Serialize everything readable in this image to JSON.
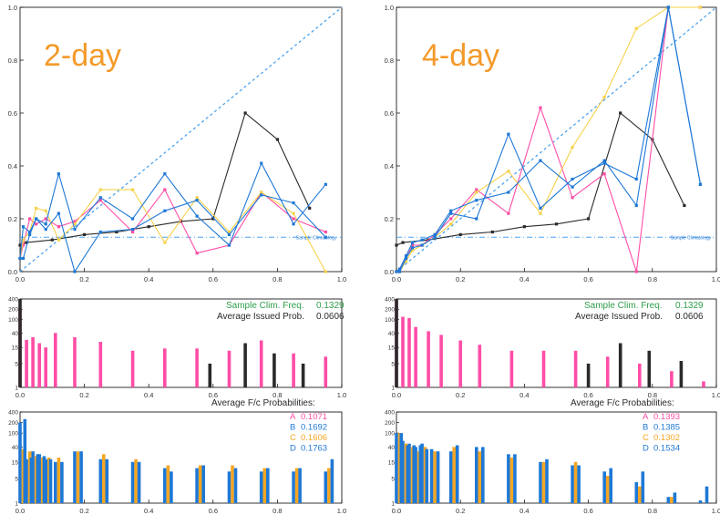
{
  "colors": {
    "black": "#2a2a2a",
    "pink": "#ff4da6",
    "blue": "#1e78d6",
    "orange": "#f5a623",
    "yellow": "#f6d24a",
    "diag": "#4aa3f0",
    "green": "#2e9e4a",
    "lead_label": "#f39a2a"
  },
  "panels": [
    {
      "lead_label": "2-day",
      "stats": {
        "clim_label": "Sample Clim. Freq.",
        "clim_value": "0.1329",
        "avg_label": "Average Issued Prob.",
        "avg_value": "0.0606"
      },
      "avg_title": "Average F/c Probabilities:",
      "avg_items": [
        {
          "letter": "A",
          "value": "0.1071",
          "color": "#ff4da6"
        },
        {
          "letter": "B",
          "value": "0.1692",
          "color": "#1e78d6"
        },
        {
          "letter": "C",
          "value": "0.1606",
          "color": "#f5a623"
        },
        {
          "letter": "D",
          "value": "0.1763",
          "color": "#1e78d6"
        }
      ],
      "sample_clim_label": "Sample Climatology"
    },
    {
      "lead_label": "4-day",
      "stats": {
        "clim_label": "Sample Clim. Freq.",
        "clim_value": "0.1329",
        "avg_label": "Average Issued Prob.",
        "avg_value": "0.0606"
      },
      "avg_title": "Average F/c Probabilities:",
      "avg_items": [
        {
          "letter": "A",
          "value": "0.1393",
          "color": "#ff4da6"
        },
        {
          "letter": "B",
          "value": "0.1385",
          "color": "#1e78d6"
        },
        {
          "letter": "C",
          "value": "0.1302",
          "color": "#f5a623"
        },
        {
          "letter": "D",
          "value": "0.1534",
          "color": "#1e78d6"
        }
      ],
      "sample_clim_label": "Sample Climatology"
    }
  ],
  "chart_data": [
    {
      "type": "line",
      "panel": "2-day reliability",
      "xlim": [
        0,
        1
      ],
      "ylim": [
        0,
        1
      ],
      "xticks": [
        "0.0",
        "0.2",
        "0.4",
        "0.6",
        "0.8",
        "1.0"
      ],
      "yticks": [
        "0.0",
        "0.2",
        "0.4",
        "0.6",
        "0.8",
        "1.0"
      ],
      "sample_climatology": 0.13,
      "series": [
        {
          "color": "black",
          "x": [
            0.0,
            0.02,
            0.1,
            0.2,
            0.3,
            0.4,
            0.5,
            0.6,
            0.7,
            0.8,
            0.9
          ],
          "y": [
            0.1,
            0.11,
            0.12,
            0.14,
            0.15,
            0.17,
            0.19,
            0.2,
            0.6,
            0.5,
            0.24
          ]
        },
        {
          "color": "pink",
          "x": [
            0.0,
            0.01,
            0.03,
            0.05,
            0.08,
            0.12,
            0.17,
            0.25,
            0.35,
            0.45,
            0.55,
            0.65,
            0.75,
            0.85,
            0.95
          ],
          "y": [
            0.05,
            0.1,
            0.2,
            0.18,
            0.2,
            0.17,
            0.19,
            0.27,
            0.15,
            0.31,
            0.07,
            0.1,
            0.3,
            0.2,
            0.15
          ]
        },
        {
          "color": "yellow",
          "x": [
            0.0,
            0.01,
            0.03,
            0.05,
            0.08,
            0.12,
            0.17,
            0.25,
            0.35,
            0.45,
            0.55,
            0.65,
            0.75,
            0.85,
            0.95
          ],
          "y": [
            0.05,
            0.12,
            0.15,
            0.24,
            0.23,
            0.12,
            0.18,
            0.31,
            0.31,
            0.11,
            0.28,
            0.15,
            0.3,
            0.22,
            0.0
          ]
        },
        {
          "color": "blue",
          "x": [
            0.0,
            0.01,
            0.03,
            0.05,
            0.08,
            0.12,
            0.17,
            0.25,
            0.35,
            0.45,
            0.55,
            0.65,
            0.75,
            0.85,
            0.95
          ],
          "y": [
            0.05,
            0.17,
            0.15,
            0.2,
            0.18,
            0.37,
            0.16,
            0.28,
            0.2,
            0.37,
            0.21,
            0.1,
            0.41,
            0.18,
            0.33
          ]
        },
        {
          "color": "blue",
          "x": [
            0.0,
            0.01,
            0.03,
            0.05,
            0.08,
            0.12,
            0.17,
            0.25,
            0.35,
            0.45,
            0.55,
            0.65,
            0.75,
            0.85,
            0.95
          ],
          "y": [
            0.05,
            0.05,
            0.14,
            0.2,
            0.16,
            0.22,
            0.0,
            0.15,
            0.16,
            0.23,
            0.27,
            0.14,
            0.29,
            0.26,
            0.13
          ]
        }
      ]
    },
    {
      "type": "line",
      "panel": "4-day reliability",
      "xlim": [
        0,
        1
      ],
      "ylim": [
        0,
        1
      ],
      "xticks": [
        "0.0",
        "0.2",
        "0.4",
        "0.6",
        "0.8",
        "1.0"
      ],
      "yticks": [
        "0.0",
        "0.2",
        "0.4",
        "0.6",
        "0.8",
        "1.0"
      ],
      "sample_climatology": 0.13,
      "series": [
        {
          "color": "black",
          "x": [
            0.0,
            0.02,
            0.1,
            0.2,
            0.3,
            0.4,
            0.5,
            0.6,
            0.7,
            0.8,
            0.9
          ],
          "y": [
            0.1,
            0.11,
            0.12,
            0.14,
            0.15,
            0.17,
            0.18,
            0.2,
            0.6,
            0.5,
            0.25
          ]
        },
        {
          "color": "pink",
          "x": [
            0.0,
            0.01,
            0.03,
            0.05,
            0.08,
            0.12,
            0.17,
            0.25,
            0.35,
            0.45,
            0.55,
            0.65,
            0.75,
            0.85,
            0.95
          ],
          "y": [
            0.0,
            0.0,
            0.05,
            0.1,
            0.1,
            0.14,
            0.2,
            0.31,
            0.22,
            0.62,
            0.28,
            0.37,
            0.0,
            1.0,
            1.0
          ]
        },
        {
          "color": "yellow",
          "x": [
            0.0,
            0.01,
            0.03,
            0.05,
            0.08,
            0.12,
            0.17,
            0.25,
            0.35,
            0.45,
            0.55,
            0.65,
            0.75,
            0.85,
            0.95
          ],
          "y": [
            0.0,
            0.0,
            0.04,
            0.08,
            0.1,
            0.13,
            0.18,
            0.3,
            0.38,
            0.22,
            0.47,
            0.66,
            0.92,
            1.0,
            1.0
          ]
        },
        {
          "color": "blue",
          "x": [
            0.0,
            0.01,
            0.03,
            0.05,
            0.08,
            0.12,
            0.17,
            0.25,
            0.35,
            0.45,
            0.55,
            0.65,
            0.75,
            0.85,
            0.95
          ],
          "y": [
            0.0,
            0.0,
            0.05,
            0.09,
            0.1,
            0.13,
            0.22,
            0.2,
            0.52,
            0.24,
            0.35,
            0.41,
            0.35,
            1.0,
            0.33
          ]
        },
        {
          "color": "blue",
          "x": [
            0.0,
            0.01,
            0.03,
            0.05,
            0.08,
            0.12,
            0.17,
            0.25,
            0.35,
            0.45,
            0.55,
            0.65,
            0.75,
            0.85,
            0.95
          ],
          "y": [
            0.0,
            0.01,
            0.06,
            0.11,
            0.12,
            0.14,
            0.23,
            0.27,
            0.3,
            0.42,
            0.32,
            0.42,
            0.25,
            1.0,
            0.33
          ]
        }
      ]
    },
    {
      "type": "bar",
      "panel": "2-day issued-probability histogram",
      "yscale": "log",
      "ylim": [
        1,
        400
      ],
      "yticks": [
        "1",
        "5",
        "15",
        "40",
        "100",
        "200",
        "400"
      ],
      "xticks": [
        "0.0",
        "0.2",
        "0.4",
        "0.6",
        "0.8",
        "1.0"
      ],
      "series": [
        {
          "color": "pink",
          "x": [
            0.0,
            0.02,
            0.04,
            0.06,
            0.08,
            0.11,
            0.17,
            0.25,
            0.35,
            0.45,
            0.55,
            0.65,
            0.75,
            0.85,
            0.95
          ],
          "values": [
            200,
            25,
            30,
            20,
            15,
            40,
            30,
            22,
            12,
            14,
            14,
            12,
            24,
            10,
            8
          ]
        },
        {
          "color": "black",
          "x": [
            0.0,
            0.59,
            0.7,
            0.79,
            0.88
          ],
          "values": [
            400,
            5,
            20,
            10,
            5
          ]
        }
      ]
    },
    {
      "type": "bar",
      "panel": "4-day issued-probability histogram",
      "yscale": "log",
      "ylim": [
        1,
        400
      ],
      "yticks": [
        "1",
        "5",
        "15",
        "40",
        "100",
        "200",
        "400"
      ],
      "xticks": [
        "0.0",
        "0.2",
        "0.4",
        "0.6",
        "0.8",
        "1.0"
      ],
      "series": [
        {
          "color": "pink",
          "x": [
            0.0,
            0.02,
            0.04,
            0.06,
            0.1,
            0.14,
            0.2,
            0.26,
            0.36,
            0.46,
            0.56,
            0.66,
            0.76,
            0.86,
            0.96
          ],
          "values": [
            400,
            120,
            110,
            60,
            45,
            35,
            24,
            18,
            12,
            12,
            12,
            8,
            5,
            3,
            1.5
          ]
        },
        {
          "color": "black",
          "x": [
            0.0,
            0.6,
            0.7,
            0.79,
            0.89
          ],
          "values": [
            400,
            5,
            20,
            12,
            6
          ]
        }
      ]
    },
    {
      "type": "bar",
      "panel": "2-day average forecast probabilities histogram",
      "yscale": "log",
      "ylim": [
        1,
        400
      ],
      "yticks": [
        "1",
        "5",
        "15",
        "40",
        "100",
        "200",
        "400"
      ],
      "xticks": [
        "0.0",
        "0.2",
        "0.4",
        "0.6",
        "0.8",
        "1.0"
      ],
      "series": [
        {
          "color": "blue",
          "x": [
            0.0,
            0.02,
            0.04,
            0.06,
            0.08,
            0.11,
            0.17,
            0.25,
            0.35,
            0.45,
            0.55,
            0.65,
            0.75,
            0.85,
            0.95
          ],
          "values": [
            200,
            18,
            30,
            25,
            18,
            15,
            30,
            18,
            15,
            10,
            10,
            8,
            8,
            8,
            8
          ]
        },
        {
          "color": "orange",
          "x": [
            0.01,
            0.03,
            0.05,
            0.07,
            0.09,
            0.12,
            0.18,
            0.26,
            0.36,
            0.46,
            0.56,
            0.66,
            0.76,
            0.86,
            0.96
          ],
          "values": [
            35,
            30,
            22,
            20,
            20,
            20,
            30,
            25,
            18,
            12,
            12,
            12,
            10,
            10,
            10
          ]
        },
        {
          "color": "blue",
          "x": [
            0.015,
            0.035,
            0.055,
            0.075,
            0.095,
            0.13,
            0.19,
            0.27,
            0.37,
            0.47,
            0.57,
            0.67,
            0.77,
            0.87,
            0.97
          ],
          "values": [
            250,
            20,
            25,
            22,
            18,
            15,
            30,
            18,
            15,
            8,
            12,
            10,
            10,
            10,
            18
          ]
        }
      ]
    },
    {
      "type": "bar",
      "panel": "4-day average forecast probabilities histogram",
      "yscale": "log",
      "ylim": [
        1,
        400
      ],
      "yticks": [
        "1",
        "5",
        "15",
        "40",
        "100",
        "200",
        "400"
      ],
      "xticks": [
        "0.0",
        "0.2",
        "0.4",
        "0.6",
        "0.8",
        "1.0"
      ],
      "series": [
        {
          "color": "blue",
          "x": [
            0.0,
            0.02,
            0.04,
            0.06,
            0.08,
            0.11,
            0.17,
            0.25,
            0.35,
            0.45,
            0.55,
            0.65,
            0.75,
            0.85,
            0.95
          ],
          "values": [
            100,
            60,
            50,
            40,
            50,
            35,
            30,
            40,
            25,
            15,
            12,
            8,
            4,
            1.5,
            1.2
          ]
        },
        {
          "color": "orange",
          "x": [
            0.01,
            0.03,
            0.05,
            0.07,
            0.09,
            0.12,
            0.18,
            0.26,
            0.36,
            0.46,
            0.56,
            0.66,
            0.76,
            0.86,
            0.96
          ],
          "values": [
            100,
            50,
            40,
            30,
            40,
            30,
            40,
            30,
            20,
            15,
            15,
            6,
            3,
            1.5,
            1
          ]
        },
        {
          "color": "blue",
          "x": [
            0.015,
            0.035,
            0.055,
            0.075,
            0.095,
            0.13,
            0.19,
            0.27,
            0.37,
            0.47,
            0.57,
            0.67,
            0.77,
            0.87,
            0.97
          ],
          "values": [
            100,
            45,
            45,
            45,
            35,
            30,
            45,
            40,
            25,
            18,
            12,
            10,
            8,
            2,
            3
          ]
        }
      ]
    }
  ]
}
